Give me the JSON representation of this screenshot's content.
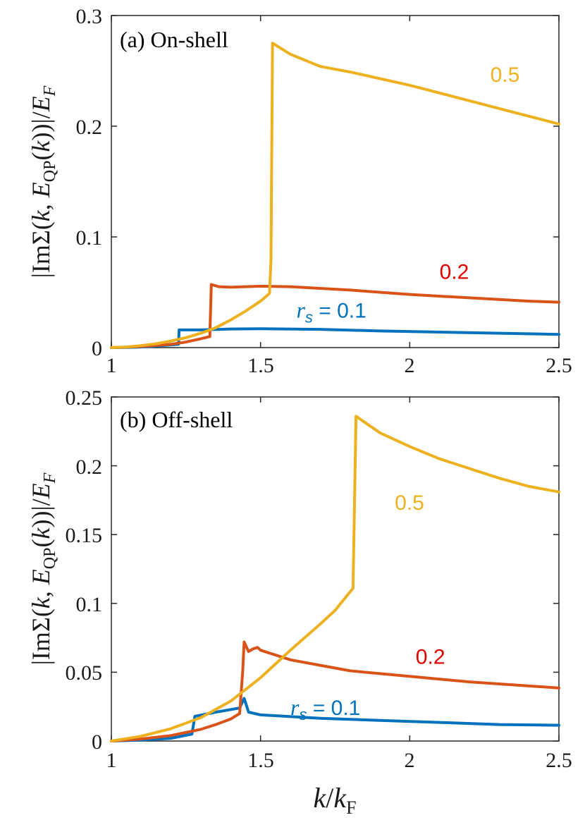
{
  "chart_data": [
    {
      "type": "line",
      "title": "(a) On-shell",
      "xlabel": "k/k_F",
      "ylabel": "|ImΣ(k, E_QP(k))|/E_F",
      "xlim": [
        1,
        2.5
      ],
      "ylim": [
        0,
        0.3
      ],
      "xticks": [
        "1",
        "1.5",
        "2",
        "2.5"
      ],
      "xtick_values": [
        1,
        1.5,
        2,
        2.5
      ],
      "yticks": [
        "0",
        "0.1",
        "0.2",
        "0.3"
      ],
      "ytick_values": [
        0,
        0.1,
        0.2,
        0.3
      ],
      "series": [
        {
          "name": "rs = 0.1",
          "label": "r_s = 0.1",
          "color": "#0072BD",
          "label_at": [
            1.62,
            0.027
          ],
          "points": [
            [
              1.0,
              0.0
            ],
            [
              1.05,
              0.0002
            ],
            [
              1.1,
              0.0006
            ],
            [
              1.15,
              0.0014
            ],
            [
              1.2,
              0.0025
            ],
            [
              1.225,
              0.003
            ],
            [
              1.227,
              0.016
            ],
            [
              1.3,
              0.016
            ],
            [
              1.4,
              0.0168
            ],
            [
              1.5,
              0.017
            ],
            [
              1.7,
              0.0165
            ],
            [
              1.9,
              0.015
            ],
            [
              2.1,
              0.014
            ],
            [
              2.3,
              0.013
            ],
            [
              2.5,
              0.012
            ]
          ]
        },
        {
          "name": "rs = 0.2",
          "label": "0.2",
          "color": "#D95319",
          "label_at": [
            2.1,
            0.062
          ],
          "points": [
            [
              1.0,
              0.0
            ],
            [
              1.05,
              0.0004
            ],
            [
              1.1,
              0.001
            ],
            [
              1.15,
              0.002
            ],
            [
              1.2,
              0.003
            ],
            [
              1.25,
              0.005
            ],
            [
              1.3,
              0.008
            ],
            [
              1.33,
              0.01
            ],
            [
              1.335,
              0.057
            ],
            [
              1.36,
              0.055
            ],
            [
              1.4,
              0.0545
            ],
            [
              1.5,
              0.0555
            ],
            [
              1.6,
              0.055
            ],
            [
              1.8,
              0.052
            ],
            [
              2.0,
              0.048
            ],
            [
              2.2,
              0.045
            ],
            [
              2.4,
              0.042
            ],
            [
              2.5,
              0.041
            ]
          ]
        },
        {
          "name": "rs = 0.5",
          "label": "0.5",
          "color": "#EDB120",
          "label_at": [
            2.27,
            0.24
          ],
          "points": [
            [
              1.0,
              0.0
            ],
            [
              1.05,
              0.0006
            ],
            [
              1.1,
              0.0018
            ],
            [
              1.15,
              0.0035
            ],
            [
              1.2,
              0.006
            ],
            [
              1.25,
              0.009
            ],
            [
              1.3,
              0.013
            ],
            [
              1.35,
              0.018
            ],
            [
              1.4,
              0.025
            ],
            [
              1.45,
              0.033
            ],
            [
              1.5,
              0.042
            ],
            [
              1.53,
              0.049
            ],
            [
              1.535,
              0.08
            ],
            [
              1.54,
              0.275
            ],
            [
              1.6,
              0.265
            ],
            [
              1.7,
              0.254
            ],
            [
              1.8,
              0.249
            ],
            [
              1.9,
              0.243
            ],
            [
              2.0,
              0.237
            ],
            [
              2.1,
              0.23
            ],
            [
              2.2,
              0.223
            ],
            [
              2.3,
              0.216
            ],
            [
              2.4,
              0.209
            ],
            [
              2.5,
              0.202
            ]
          ]
        }
      ]
    },
    {
      "type": "line",
      "title": "(b) Off-shell",
      "xlabel": "k/k_F",
      "ylabel": "|ImΣ(k, E_QP(k))|/E_F",
      "xlim": [
        1,
        2.5
      ],
      "ylim": [
        0,
        0.25
      ],
      "xticks": [
        "1",
        "1.5",
        "2",
        "2.5"
      ],
      "xtick_values": [
        1,
        1.5,
        2,
        2.5
      ],
      "yticks": [
        "0",
        "0.05",
        "0.1",
        "0.15",
        "0.2",
        "0.25"
      ],
      "ytick_values": [
        0,
        0.05,
        0.1,
        0.15,
        0.2,
        0.25
      ],
      "series": [
        {
          "name": "rs = 0.1",
          "label": "r_s = 0.1",
          "color": "#0072BD",
          "label_at": [
            1.6,
            0.019
          ],
          "points": [
            [
              1.0,
              0.0
            ],
            [
              1.1,
              0.0007
            ],
            [
              1.2,
              0.002
            ],
            [
              1.27,
              0.005
            ],
            [
              1.28,
              0.018
            ],
            [
              1.35,
              0.021
            ],
            [
              1.43,
              0.024
            ],
            [
              1.445,
              0.031
            ],
            [
              1.46,
              0.021
            ],
            [
              1.5,
              0.019
            ],
            [
              1.7,
              0.0165
            ],
            [
              1.9,
              0.015
            ],
            [
              2.1,
              0.0135
            ],
            [
              2.3,
              0.012
            ],
            [
              2.5,
              0.0115
            ]
          ]
        },
        {
          "name": "rs = 0.2",
          "label": "0.2",
          "color": "#D95319",
          "label_at": [
            2.02,
            0.056
          ],
          "points": [
            [
              1.0,
              0.0
            ],
            [
              1.1,
              0.0015
            ],
            [
              1.2,
              0.004
            ],
            [
              1.3,
              0.0085
            ],
            [
              1.35,
              0.012
            ],
            [
              1.4,
              0.016
            ],
            [
              1.43,
              0.02
            ],
            [
              1.44,
              0.05
            ],
            [
              1.445,
              0.072
            ],
            [
              1.46,
              0.065
            ],
            [
              1.475,
              0.067
            ],
            [
              1.49,
              0.068
            ],
            [
              1.5,
              0.066
            ],
            [
              1.6,
              0.059
            ],
            [
              1.7,
              0.055
            ],
            [
              1.8,
              0.051
            ],
            [
              2.0,
              0.047
            ],
            [
              2.2,
              0.043
            ],
            [
              2.4,
              0.04
            ],
            [
              2.5,
              0.0385
            ]
          ]
        },
        {
          "name": "rs = 0.5",
          "label": "0.5",
          "color": "#EDB120",
          "label_at": [
            1.95,
            0.168
          ],
          "points": [
            [
              1.0,
              0.0
            ],
            [
              1.1,
              0.0035
            ],
            [
              1.2,
              0.009
            ],
            [
              1.3,
              0.017
            ],
            [
              1.4,
              0.029
            ],
            [
              1.5,
              0.046
            ],
            [
              1.6,
              0.066
            ],
            [
              1.7,
              0.085
            ],
            [
              1.75,
              0.095
            ],
            [
              1.78,
              0.103
            ],
            [
              1.81,
              0.111
            ],
            [
              1.82,
              0.236
            ],
            [
              1.9,
              0.224
            ],
            [
              2.0,
              0.214
            ],
            [
              2.1,
              0.205
            ],
            [
              2.2,
              0.198
            ],
            [
              2.3,
              0.191
            ],
            [
              2.4,
              0.185
            ],
            [
              2.5,
              0.181
            ]
          ]
        }
      ]
    }
  ],
  "colors": {
    "rs_0_1": "#0072BD",
    "rs_0_2": "#D95319",
    "rs_0_5": "#EDB120"
  }
}
